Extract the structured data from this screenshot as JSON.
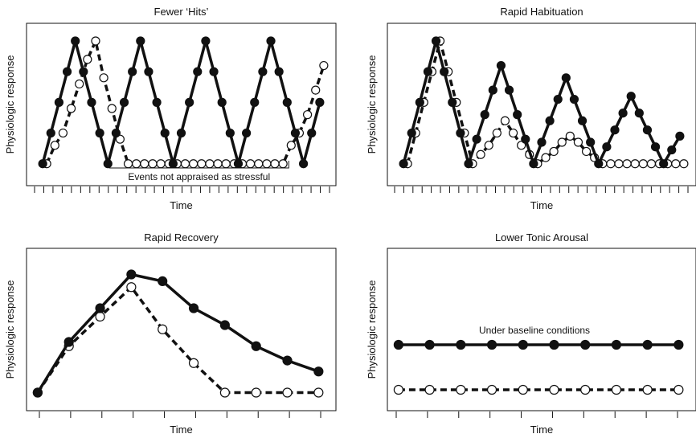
{
  "chart_data": [
    {
      "type": "line",
      "title": "Fewer ‘Hits’",
      "xlabel": "Time",
      "ylabel": "Physiologic response",
      "xlim": [
        -1,
        35
      ],
      "ylim": [
        -2,
        20
      ],
      "annotation": {
        "text": "Events not appraised as stressful",
        "x_from": 8,
        "x_to": 30
      },
      "series": [
        {
          "style": "solid-filled",
          "x": [
            0,
            1,
            2,
            3,
            4,
            5,
            6,
            7,
            8,
            9,
            10,
            11,
            12,
            13,
            14,
            15,
            16,
            17,
            18,
            19,
            20,
            21,
            22,
            23,
            24,
            25,
            26,
            27,
            28,
            29,
            30,
            31,
            32,
            33,
            34
          ],
          "values": [
            0,
            5,
            10,
            15,
            20,
            15,
            10,
            5,
            0,
            5,
            10,
            15,
            20,
            15,
            10,
            5,
            0,
            5,
            10,
            15,
            20,
            15,
            10,
            5,
            0,
            5,
            10,
            15,
            20,
            15,
            10,
            5,
            0,
            5,
            10
          ]
        },
        {
          "style": "dashed-open",
          "x": [
            0,
            1,
            2,
            3,
            4,
            5,
            6,
            7,
            8,
            9,
            10,
            11,
            12,
            13,
            14,
            15,
            16,
            17,
            18,
            19,
            20,
            21,
            22,
            23,
            24,
            25,
            26,
            27,
            28,
            29,
            30,
            31,
            32,
            33,
            34
          ],
          "values": [
            0,
            3,
            5,
            9,
            13,
            17,
            20,
            14,
            9,
            4,
            0,
            0,
            0,
            0,
            0,
            0,
            0,
            0,
            0,
            0,
            0,
            0,
            0,
            0,
            0,
            0,
            0,
            0,
            0,
            0,
            3,
            5,
            8,
            12,
            16
          ]
        }
      ]
    },
    {
      "type": "line",
      "title": "Rapid Habituation",
      "xlabel": "Time",
      "ylabel": "Physiologic response",
      "xlim": [
        -1,
        35
      ],
      "ylim": [
        -2,
        20
      ],
      "series": [
        {
          "style": "solid-filled",
          "x": [
            0,
            1,
            2,
            3,
            4,
            5,
            6,
            7,
            8,
            9,
            10,
            11,
            12,
            13,
            14,
            15,
            16,
            17,
            18,
            19,
            20,
            21,
            22,
            23,
            24,
            25,
            26,
            27,
            28,
            29,
            30,
            31,
            32,
            33,
            34
          ],
          "values": [
            0,
            5,
            10,
            15,
            20,
            15,
            10,
            5,
            0,
            4,
            8,
            12,
            16,
            12,
            8,
            4,
            0,
            3.5,
            7,
            10.5,
            14,
            10.5,
            7,
            3.5,
            0,
            2.75,
            5.5,
            8.25,
            11,
            8.25,
            5.5,
            2.75,
            0,
            2.25,
            4.5
          ]
        },
        {
          "style": "dashed-open",
          "x": [
            0,
            1,
            2,
            3,
            4,
            5,
            6,
            7,
            8,
            9,
            10,
            11,
            12,
            13,
            14,
            15,
            16,
            17,
            18,
            19,
            20,
            21,
            22,
            23,
            24,
            25,
            26,
            27,
            28,
            29,
            30,
            31,
            32,
            33,
            34
          ],
          "values": [
            0,
            5,
            10,
            15,
            20,
            15,
            10,
            5,
            0,
            1.5,
            3,
            5,
            7,
            5,
            3,
            1.5,
            0,
            1,
            2,
            3.5,
            4.5,
            3.5,
            2,
            1,
            0,
            0,
            0,
            0,
            0,
            0,
            0,
            0,
            0,
            0,
            0
          ]
        }
      ]
    },
    {
      "type": "line",
      "title": "Rapid Recovery",
      "xlabel": "Time",
      "ylabel": "Physiologic response",
      "xlim": [
        -0.1,
        9.3
      ],
      "ylim": [
        -1,
        15
      ],
      "series": [
        {
          "style": "solid-filled",
          "x": [
            0,
            1,
            2,
            3,
            4,
            5,
            6,
            7,
            8,
            9
          ],
          "values": [
            0,
            6,
            10,
            14,
            13.2,
            10,
            8,
            5.5,
            3.8,
            2.5
          ]
        },
        {
          "style": "dashed-open",
          "x": [
            0,
            1,
            2,
            3,
            4,
            5,
            6,
            7,
            8,
            9
          ],
          "values": [
            0,
            5.5,
            9,
            12.5,
            7.5,
            3.5,
            0,
            0,
            0,
            0
          ]
        }
      ]
    },
    {
      "type": "line",
      "title": "Lower Tonic Arousal",
      "xlabel": "Time",
      "ylabel": "Physiologic response",
      "xlim": [
        -0.1,
        9.3
      ],
      "ylim": [
        0,
        12
      ],
      "annotation": {
        "text": "Under baseline conditions"
      },
      "series": [
        {
          "style": "solid-filled",
          "x": [
            0,
            1,
            2,
            3,
            4,
            5,
            6,
            7,
            8,
            9
          ],
          "values": [
            5,
            5,
            5,
            5,
            5,
            5,
            5,
            5,
            5,
            5
          ]
        },
        {
          "style": "dashed-open",
          "x": [
            0,
            1,
            2,
            3,
            4,
            5,
            6,
            7,
            8,
            9
          ],
          "values": [
            1,
            1,
            1,
            1,
            1,
            1,
            1,
            1,
            1,
            1
          ]
        }
      ]
    }
  ]
}
